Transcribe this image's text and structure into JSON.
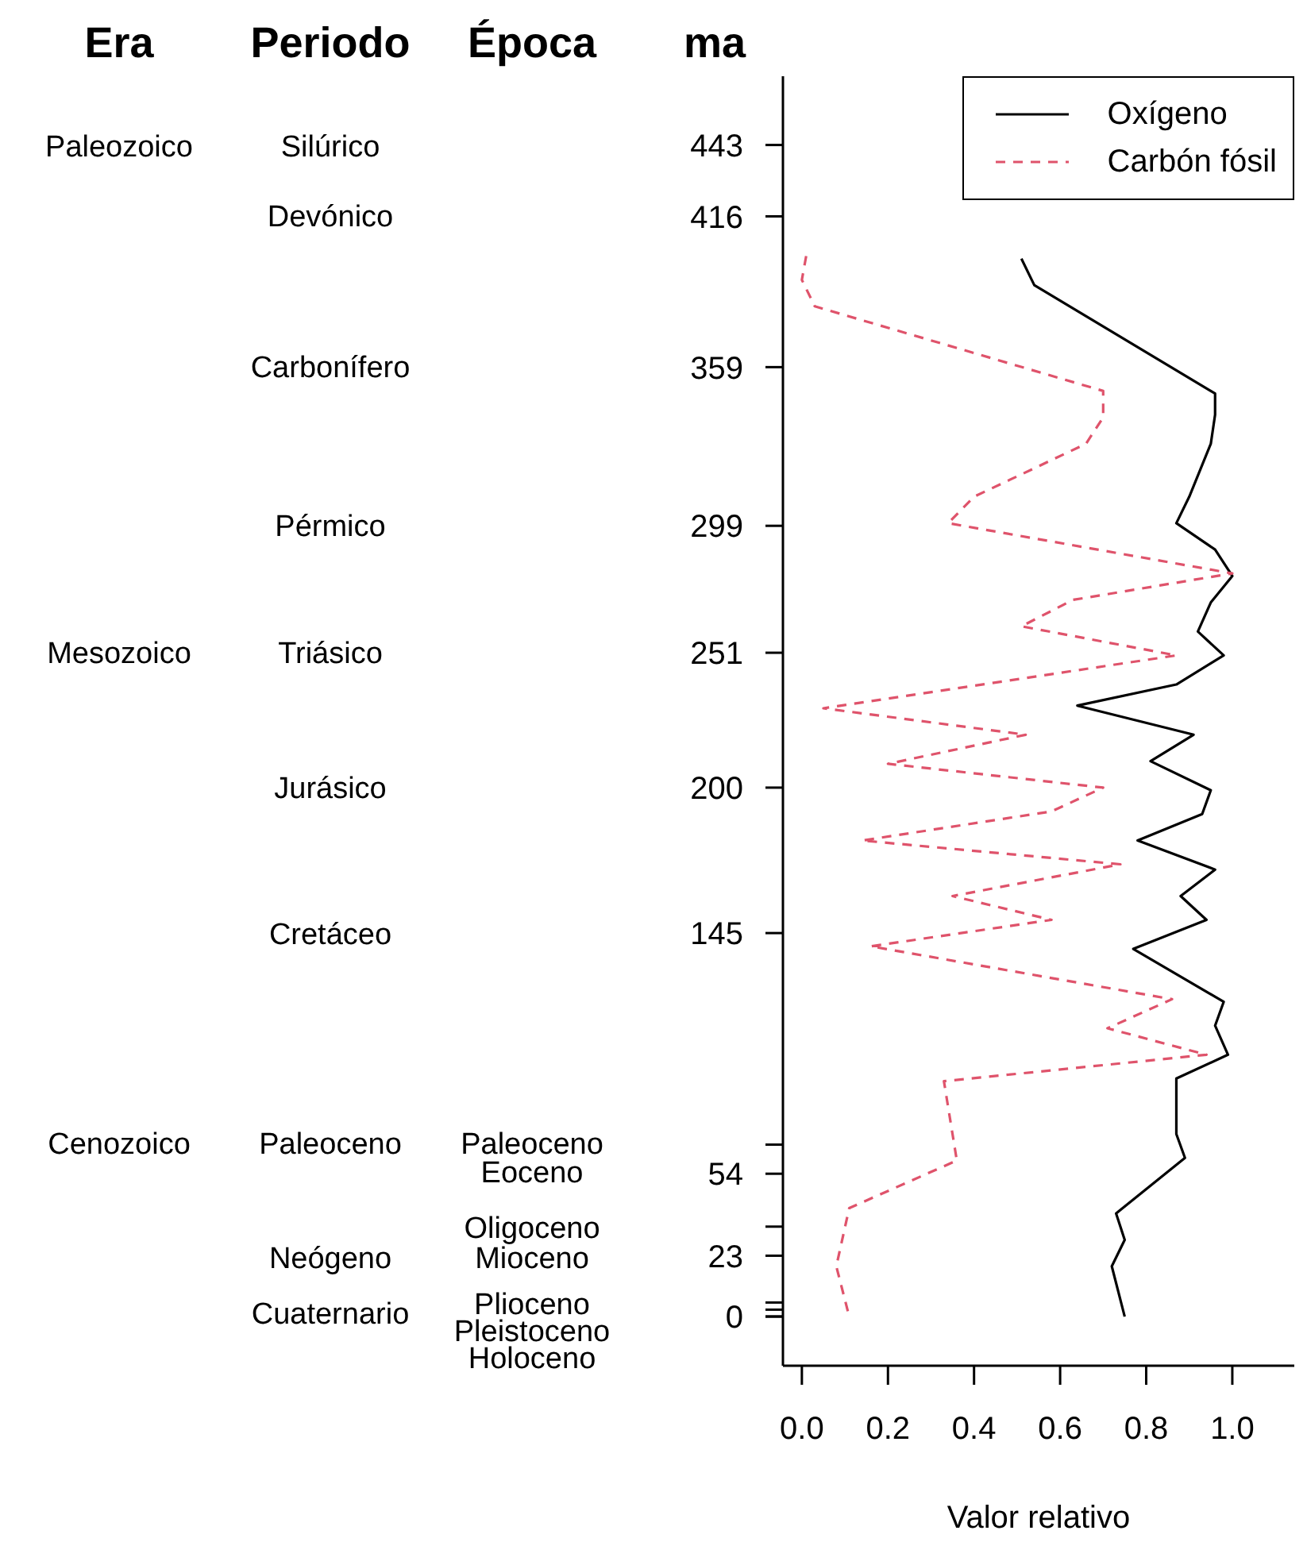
{
  "chart_data": {
    "type": "line",
    "xlabel": "Valor relativo",
    "ylabel": "ma",
    "xlim": [
      -0.044,
      1.144
    ],
    "xticks": [
      {
        "value": 0,
        "label": "0.0"
      },
      {
        "value": 0.2,
        "label": "0.2"
      },
      {
        "value": 0.4,
        "label": "0.4"
      },
      {
        "value": 0.6,
        "label": "0.6"
      },
      {
        "value": 0.8,
        "label": "0.8"
      },
      {
        "value": 1,
        "label": "1.0"
      }
    ],
    "ylim": [
      -18.6,
      469
    ],
    "yticks": [
      443,
      416,
      359,
      299,
      251,
      200,
      145,
      {
        "value": 65,
        "label": null
      },
      54,
      {
        "value": 34,
        "label": null
      },
      23,
      {
        "value": 5.3,
        "label": null
      },
      {
        "value": 2.6,
        "label": null
      },
      {
        "value": 0.01,
        "label": null
      },
      0
    ],
    "legend": "top right",
    "grid": false,
    "series": [
      {
        "name": "Oxígeno",
        "color": "#000000",
        "line_style": "solid",
        "x": [
          0.51,
          0.54,
          0.96,
          0.96,
          0.95,
          0.9,
          0.87,
          0.96,
          1.0,
          0.95,
          0.92,
          0.98,
          0.87,
          0.64,
          0.91,
          0.81,
          0.95,
          0.93,
          0.78,
          0.96,
          0.88,
          0.94,
          0.77,
          0.98,
          0.96,
          0.99,
          0.87,
          0.87,
          0.89,
          0.73,
          0.75,
          0.72,
          0.75
        ],
        "values": [
          400,
          390,
          349,
          341,
          330,
          310,
          300,
          290,
          280,
          270,
          259,
          250,
          239,
          231,
          220,
          210,
          199,
          190,
          180,
          169,
          159,
          150,
          139,
          119,
          110,
          99,
          90,
          69,
          60,
          39,
          29,
          19,
          0
        ]
      },
      {
        "name": "Carbón fósil",
        "color": "#df536b",
        "line_style": "dashed",
        "x": [
          0.01,
          0.0,
          0.03,
          0.7,
          0.7,
          0.66,
          0.4,
          0.34,
          1.0,
          0.63,
          0.51,
          0.87,
          0.05,
          0.52,
          0.2,
          0.7,
          0.58,
          0.14,
          0.74,
          0.35,
          0.58,
          0.16,
          0.86,
          0.71,
          0.94,
          0.33,
          0.36,
          0.11,
          0.08,
          0.11
        ],
        "values": [
          401,
          392,
          382,
          350,
          340,
          330,
          310,
          300,
          281,
          271,
          261,
          250,
          230,
          220,
          209,
          200,
          191,
          180,
          171,
          159,
          150,
          140,
          120,
          109,
          99,
          89,
          59,
          41,
          19,
          0
        ]
      }
    ],
    "annotations": [
      "Era",
      "Paleozoico",
      "Mesozoico",
      "Cenozoico",
      "Periodo",
      "Silúrico",
      "Devónico",
      "Carbonífero",
      "Pérmico",
      "Triásico",
      "Jurásico",
      "Cretáceo",
      "Paleoceno",
      "Neógeno",
      "Cuaternario",
      "Época",
      "Paleoceno",
      "Eoceno",
      "Oligoceno",
      "Mioceno",
      "Plioceno",
      "Pleistoceno",
      "Holoceno"
    ]
  }
}
